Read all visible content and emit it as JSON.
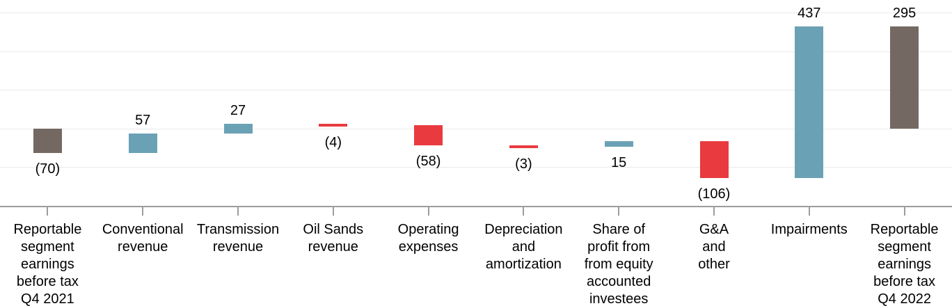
{
  "chart_data": {
    "type": "bar",
    "subtype": "waterfall",
    "categories": [
      "Reportable\nsegment\nearnings\nbefore tax\nQ4 2021",
      "Conventional\nrevenue",
      "Transmission\nrevenue",
      "Oil Sands\nrevenue",
      "Operating\nexpenses",
      "Depreciation\nand\namortization",
      "Share of\nprofit from\nfrom equity\naccounted\ninvestees",
      "G&A\nand\nother",
      "Impairments",
      "Reportable\nsegment\nearnings\nbefore tax\nQ4 2022"
    ],
    "values": [
      -70,
      57,
      27,
      -4,
      -58,
      -3,
      15,
      -106,
      437,
      295
    ],
    "bar_roles": [
      "total",
      "delta",
      "delta",
      "delta",
      "delta",
      "delta",
      "delta",
      "delta",
      "delta",
      "total"
    ],
    "data_labels": [
      "(70)",
      "57",
      "27",
      "(4)",
      "(58)",
      "(3)",
      "15",
      "(106)",
      "437",
      "295"
    ],
    "label_side": [
      "below",
      "above",
      "above",
      "below",
      "below",
      "below",
      "below",
      "below",
      "above",
      "above"
    ],
    "colors": {
      "total": "#746962",
      "increase": "#6BA1B5",
      "decrease": "#E93B3F",
      "gridline": "#E9E9E9",
      "axis": "#9C9C9C",
      "label_text": "#000000"
    },
    "axis": {
      "ylim": [
        -222,
        370
      ],
      "gridline_values": [
        333,
        222,
        111,
        0,
        -111
      ],
      "y_axis_labels_visible": false,
      "grid": true,
      "legend": "none"
    }
  }
}
